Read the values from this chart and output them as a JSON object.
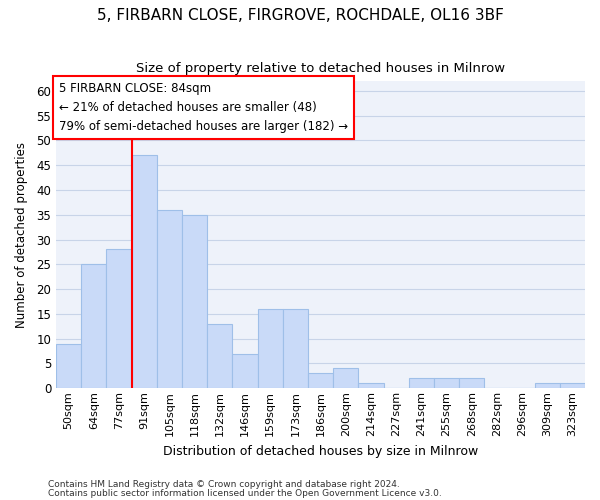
{
  "title1": "5, FIRBARN CLOSE, FIRGROVE, ROCHDALE, OL16 3BF",
  "title2": "Size of property relative to detached houses in Milnrow",
  "xlabel": "Distribution of detached houses by size in Milnrow",
  "ylabel": "Number of detached properties",
  "categories": [
    "50sqm",
    "64sqm",
    "77sqm",
    "91sqm",
    "105sqm",
    "118sqm",
    "132sqm",
    "146sqm",
    "159sqm",
    "173sqm",
    "186sqm",
    "200sqm",
    "214sqm",
    "227sqm",
    "241sqm",
    "255sqm",
    "268sqm",
    "282sqm",
    "296sqm",
    "309sqm",
    "323sqm"
  ],
  "values": [
    9,
    25,
    28,
    47,
    36,
    35,
    13,
    7,
    16,
    16,
    3,
    4,
    1,
    0,
    2,
    2,
    2,
    0,
    0,
    1,
    1
  ],
  "bar_color": "#c9daf8",
  "bar_edge_color": "#9fbfe8",
  "ylim": [
    0,
    62
  ],
  "yticks": [
    0,
    5,
    10,
    15,
    20,
    25,
    30,
    35,
    40,
    45,
    50,
    55,
    60
  ],
  "annot_line1": "5 FIRBARN CLOSE: 84sqm",
  "annot_line2": "← 21% of detached houses are smaller (48)",
  "annot_line3": "79% of semi-detached houses are larger (182) →",
  "vline_bar_index": 3,
  "footnote1": "Contains HM Land Registry data © Crown copyright and database right 2024.",
  "footnote2": "Contains public sector information licensed under the Open Government Licence v3.0.",
  "grid_color": "#c8d4e8",
  "background_color": "#eef2fa",
  "title1_fontsize": 11,
  "title2_fontsize": 9.5
}
